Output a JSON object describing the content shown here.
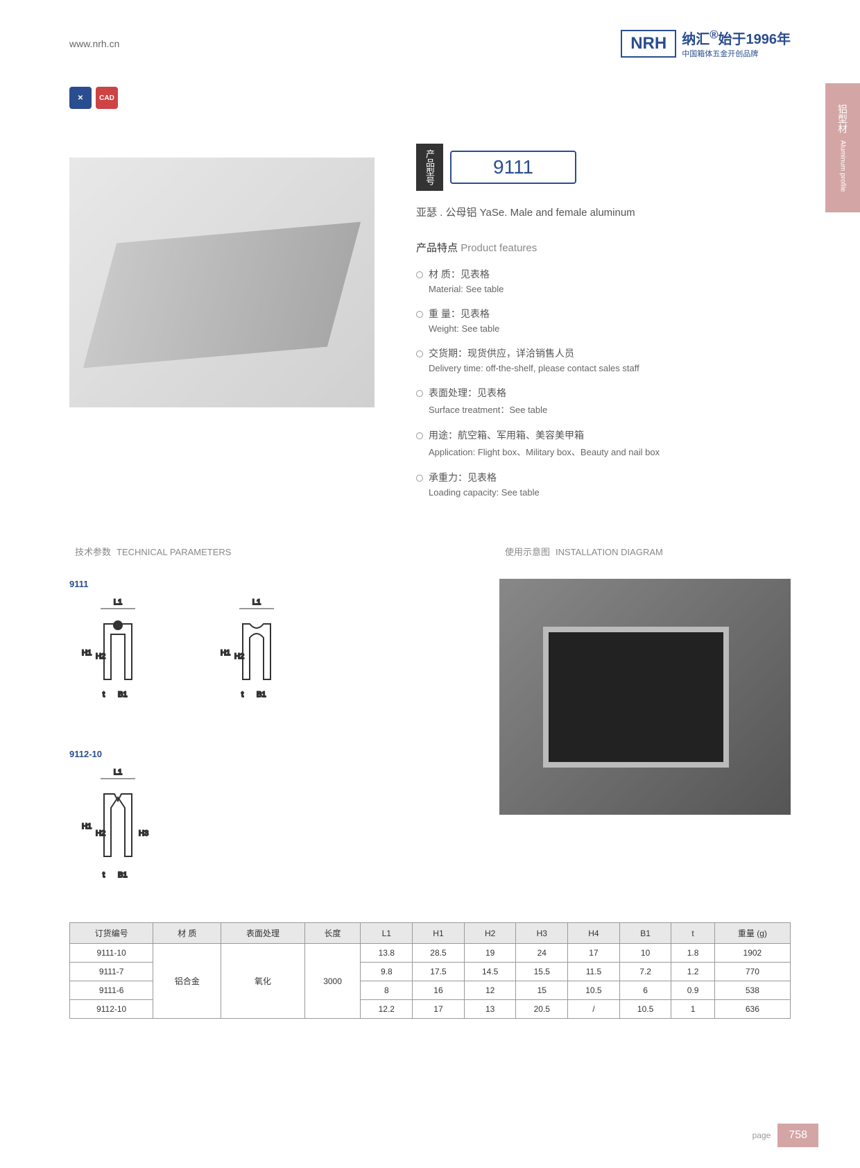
{
  "header": {
    "url": "www.nrh.cn",
    "logo": "NRH",
    "brand_cn": "纳汇",
    "brand_year": "始于1996年",
    "brand_sub": "中国箱体五金开创品牌"
  },
  "side_tab": {
    "cn": "铝型材",
    "en": "Aluminum profile"
  },
  "icons": {
    "blue": "✕",
    "red": "CAD"
  },
  "model": {
    "label": "产品型号",
    "number": "9111"
  },
  "subtitle": "亚瑟 . 公母铝  YaSe. Male and female aluminum",
  "features": {
    "title_cn": "产品特点",
    "title_en": "Product features",
    "items": [
      {
        "cn": "材 质：见表格",
        "en": "Material: See table"
      },
      {
        "cn": "重 量：见表格",
        "en": "Weight: See table"
      },
      {
        "cn": "交货期：现货供应，详洽销售人员",
        "en": "Delivery time: off-the-shelf, please contact sales staff"
      },
      {
        "cn": "表面处理：见表格",
        "en": "Surface treatment：See table"
      },
      {
        "cn": "用途：航空箱、军用箱、美容美甲箱",
        "en": "Application: Flight box、Military box、Beauty and nail box"
      },
      {
        "cn": "承重力：见表格",
        "en": "Loading capacity: See table"
      }
    ]
  },
  "tech": {
    "title_cn": "技术参数",
    "title_en": "TECHNICAL PARAMETERS",
    "d1_label": "9111",
    "d2_label": "9112-10"
  },
  "install": {
    "title_cn": "使用示意图",
    "title_en": "INSTALLATION DIAGRAM"
  },
  "table": {
    "headers": [
      "订货编号",
      "材 质",
      "表面处理",
      "长度",
      "L1",
      "H1",
      "H2",
      "H3",
      "H4",
      "B1",
      "t",
      "重量 (g)"
    ],
    "material": "铝合金",
    "surface": "氧化",
    "length": "3000",
    "rows": [
      {
        "code": "9111-10",
        "l1": "13.8",
        "h1": "28.5",
        "h2": "19",
        "h3": "24",
        "h4": "17",
        "b1": "10",
        "t": "1.8",
        "w": "1902"
      },
      {
        "code": "9111-7",
        "l1": "9.8",
        "h1": "17.5",
        "h2": "14.5",
        "h3": "15.5",
        "h4": "11.5",
        "b1": "7.2",
        "t": "1.2",
        "w": "770"
      },
      {
        "code": "9111-6",
        "l1": "8",
        "h1": "16",
        "h2": "12",
        "h3": "15",
        "h4": "10.5",
        "b1": "6",
        "t": "0.9",
        "w": "538"
      },
      {
        "code": "9112-10",
        "l1": "12.2",
        "h1": "17",
        "h2": "13",
        "h3": "20.5",
        "h4": "/",
        "b1": "10.5",
        "t": "1",
        "w": "636"
      }
    ]
  },
  "page": {
    "label": "page",
    "num": "758"
  }
}
